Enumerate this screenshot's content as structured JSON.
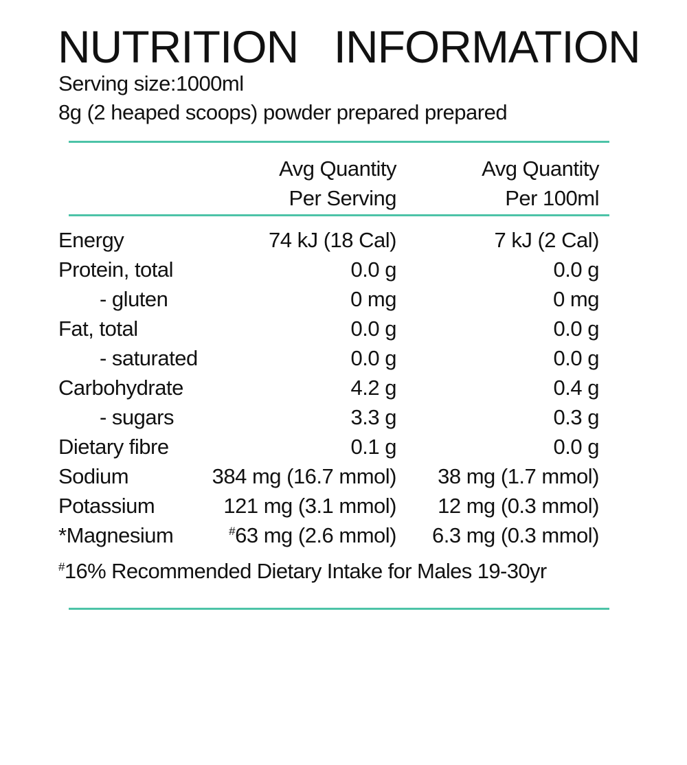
{
  "title": "NUTRITION INFORMATION",
  "serving_size": "Serving size:1000ml",
  "preparation": "8g (2 heaped scoops) powder prepared prepared",
  "accent_color": "#4cc3a7",
  "columns": {
    "per_serving": [
      "Avg Quantity",
      "Per Serving"
    ],
    "per_100ml": [
      "Avg Quantity",
      "Per 100ml"
    ]
  },
  "rows": [
    {
      "label": "Energy",
      "indent": false,
      "mark": "",
      "per_serving": "74 kJ (18 Cal)",
      "per_100ml": "7 kJ (2 Cal)"
    },
    {
      "label": "Protein, total",
      "indent": false,
      "mark": "",
      "per_serving": "0.0 g",
      "per_100ml": "0.0 g"
    },
    {
      "label": "- gluten",
      "indent": true,
      "mark": "",
      "per_serving": "0 mg",
      "per_100ml": "0 mg"
    },
    {
      "label": "Fat, total",
      "indent": false,
      "mark": "",
      "per_serving": "0.0 g",
      "per_100ml": "0.0 g"
    },
    {
      "label": "- saturated",
      "indent": true,
      "mark": "",
      "per_serving": "0.0 g",
      "per_100ml": "0.0 g"
    },
    {
      "label": "Carbohydrate",
      "indent": false,
      "mark": "",
      "per_serving": "4.2 g",
      "per_100ml": "0.4 g"
    },
    {
      "label": "- sugars",
      "indent": true,
      "mark": "",
      "per_serving": "3.3 g",
      "per_100ml": "0.3 g"
    },
    {
      "label": "Dietary fibre",
      "indent": false,
      "mark": "",
      "per_serving": "0.1 g",
      "per_100ml": "0.0 g"
    },
    {
      "label": "Sodium",
      "indent": false,
      "mark": "",
      "per_serving": "384 mg (16.7 mmol)",
      "per_100ml": "38 mg (1.7 mmol)"
    },
    {
      "label": "Potassium",
      "indent": false,
      "mark": "",
      "per_serving": "121 mg (3.1 mmol)",
      "per_100ml": "12 mg (0.3 mmol)"
    },
    {
      "label": "*Magnesium",
      "indent": false,
      "mark": "#",
      "per_serving": "63 mg (2.6 mmol)",
      "per_100ml": "6.3 mg (0.3 mmol)"
    }
  ],
  "footnote": {
    "mark": "#",
    "text": "16% Recommended Dietary Intake for Males 19-30yr"
  }
}
